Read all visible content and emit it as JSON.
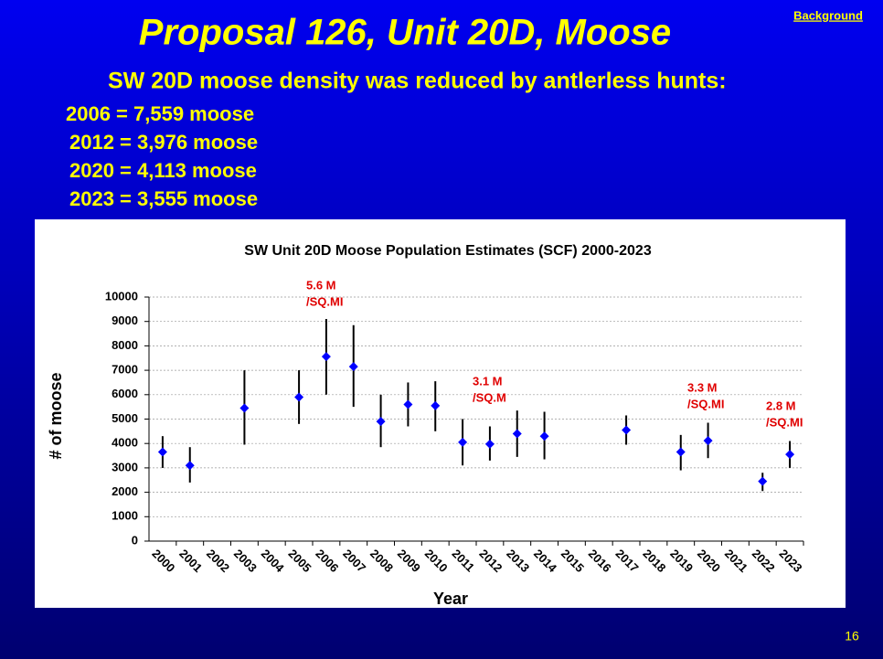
{
  "slide": {
    "title": "Proposal 126, Unit 20D, Moose",
    "link": "Background",
    "subtitle": "SW 20D moose density was reduced by antlerless hunts:",
    "facts": [
      "2006 = 7,559 moose",
      "2012 = 3,976 moose",
      "2020 = 4,113 moose",
      "2023 = 3,555 moose"
    ],
    "page_number": "16"
  },
  "chart_data": {
    "type": "errorbar",
    "title": "SW Unit 20D Moose Population Estimates (SCF) 2000-2023",
    "x_label": "Year",
    "y_label": "# of moose",
    "categories": [
      "2000",
      "2001",
      "2002",
      "2003",
      "2004",
      "2005",
      "2006",
      "2007",
      "2008",
      "2009",
      "2010",
      "2011",
      "2012",
      "2013",
      "2014",
      "2015",
      "2016",
      "2017",
      "2018",
      "2019",
      "2020",
      "2021",
      "2022",
      "2023"
    ],
    "values": [
      3650,
      3100,
      null,
      5450,
      null,
      5900,
      7559,
      7150,
      4900,
      5600,
      5550,
      4050,
      3976,
      4400,
      4300,
      null,
      null,
      4550,
      null,
      3650,
      4113,
      null,
      2450,
      3555
    ],
    "low": [
      3000,
      2400,
      null,
      3950,
      null,
      4800,
      6000,
      5500,
      3850,
      4700,
      4500,
      3100,
      3300,
      3450,
      3350,
      null,
      null,
      3950,
      null,
      2900,
      3400,
      null,
      2050,
      3000
    ],
    "high": [
      4300,
      3850,
      null,
      7000,
      null,
      7000,
      9100,
      8850,
      6000,
      6500,
      6550,
      5000,
      4700,
      5350,
      5300,
      null,
      null,
      5150,
      null,
      4350,
      4850,
      null,
      2800,
      4100
    ],
    "color": "#0000ff",
    "error_color": "#000000",
    "ylim": [
      0,
      10000
    ],
    "yticks": [
      0,
      1000,
      2000,
      3000,
      4000,
      5000,
      6000,
      7000,
      8000,
      9000,
      10000
    ],
    "grid": true,
    "annotations": [
      [
        "5.6 M",
        "/SQ.MI"
      ],
      [
        "3.1 M",
        "/SQ.M"
      ],
      [
        "3.3 M",
        "/SQ.MI"
      ],
      [
        "2.8 M",
        "/SQ.MI"
      ]
    ]
  }
}
